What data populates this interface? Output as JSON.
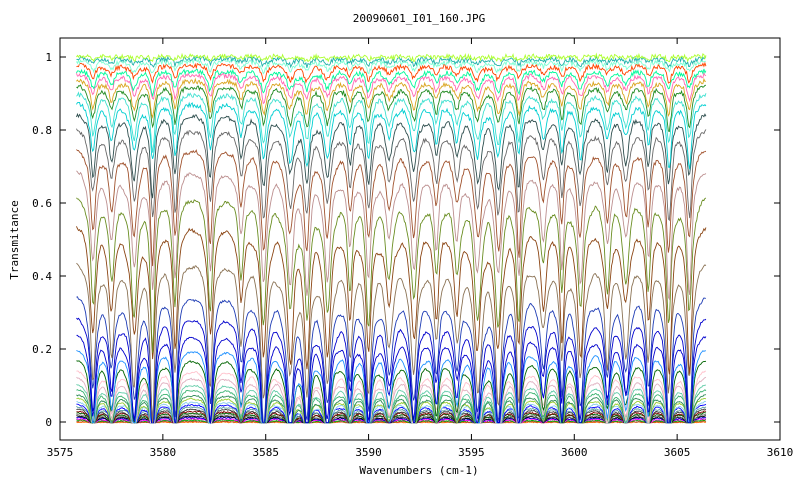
{
  "chart_data": {
    "type": "line",
    "title": "20090601_I01_160.JPG",
    "xlabel": "Wavenumbers (cm-1)",
    "ylabel": "Transmitance",
    "xlim": [
      3575,
      3610
    ],
    "ylim": [
      0,
      1
    ],
    "x_range_of_data": [
      3575.8,
      3606.4
    ],
    "xticks": [
      "3575",
      "3580",
      "3585",
      "3590",
      "3595",
      "3600",
      "3605",
      "3610"
    ],
    "yticks": [
      "0",
      "0.2",
      "0.4",
      "0.6",
      "0.8",
      "1"
    ],
    "grid": false,
    "legend": "none",
    "absorption_line_centers": [
      3576.6,
      3577.5,
      3578.6,
      3579.5,
      3580.6,
      3582.3,
      3583.8,
      3584.9,
      3586.2,
      3587.0,
      3588.0,
      3589.1,
      3590.0,
      3591.0,
      3592.2,
      3593.3,
      3594.3,
      3595.3,
      3596.3,
      3597.3,
      3598.5,
      3599.4,
      3600.3,
      3601.6,
      3602.5,
      3603.6,
      3604.6,
      3605.6
    ],
    "series_baselines": [
      0.0,
      0.003,
      0.006,
      0.01,
      0.014,
      0.018,
      0.022,
      0.027,
      0.032,
      0.038,
      0.045,
      0.052,
      0.06,
      0.07,
      0.08,
      0.095,
      0.11,
      0.13,
      0.15,
      0.18,
      0.21,
      0.25,
      0.3,
      0.36,
      0.45,
      0.55,
      0.63,
      0.7,
      0.76,
      0.81,
      0.85,
      0.88,
      0.905,
      0.925,
      0.94,
      0.955,
      0.965,
      0.975,
      0.985,
      0.992,
      0.998
    ],
    "series_colors": [
      "#ff6600",
      "#a0522d",
      "#00aa00",
      "#ff00ff",
      "#0000cc",
      "#000000",
      "#777777",
      "#006400",
      "#800000",
      "#333333",
      "#5f9ea0",
      "#0000ff",
      "#87ceeb",
      "#9acd32",
      "#2e8b57",
      "#3cb371",
      "#66cdaa",
      "#e0b0c0",
      "#ffc0cb",
      "#006400",
      "#1e90ff",
      "#0000cd",
      "#0000cd",
      "#1e3cb4",
      "#8b7355",
      "#8b4513",
      "#6b8e23",
      "#bc8f8f",
      "#a0522d",
      "#696969",
      "#2f4f4f",
      "#00ced1",
      "#40e0d0",
      "#228b22",
      "#daa520",
      "#ff69b4",
      "#00fa9a",
      "#ff4500",
      "#7fffd4",
      "#20b2aa",
      "#adff2f"
    ]
  }
}
